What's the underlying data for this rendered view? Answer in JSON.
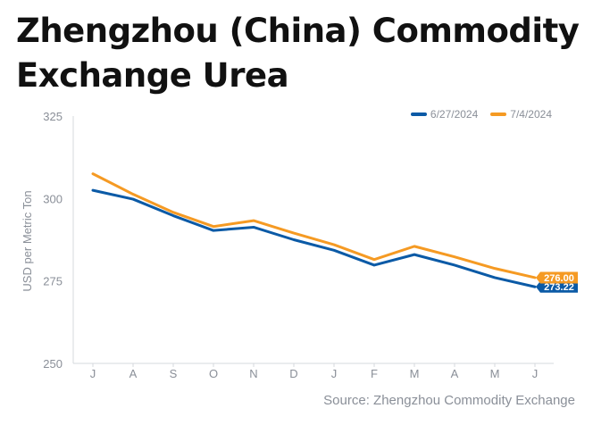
{
  "title_line1": "Zhengzhou (China) Commodity",
  "title_line2": "Exchange Urea",
  "source": "Source: Zhengzhou Commodity Exchange",
  "colors": {
    "series1": "#0b5aa6",
    "series2": "#f59a23",
    "axis": "#d5d8dd",
    "text": "#8a8f98"
  },
  "chart_data": {
    "type": "line",
    "title": "Zhengzhou (China) Commodity Exchange Urea",
    "ylabel": "USD per Metric Ton",
    "xlabel": "",
    "categories": [
      "J",
      "A",
      "S",
      "O",
      "N",
      "D",
      "J",
      "F",
      "M",
      "A",
      "M",
      "J"
    ],
    "ylim": [
      250,
      325
    ],
    "yticks": [
      250,
      275,
      300,
      325
    ],
    "grid": false,
    "legend_position": "top-right",
    "series": [
      {
        "name": "6/27/2024",
        "color": "#0b5aa6",
        "values": [
          302.5,
          299.8,
          294.8,
          290.3,
          291.3,
          287.5,
          284.3,
          279.8,
          283.0,
          279.8,
          276.0,
          273.22
        ],
        "end_label": "273.22"
      },
      {
        "name": "7/4/2024",
        "color": "#f59a23",
        "values": [
          307.5,
          301.3,
          295.8,
          291.5,
          293.3,
          289.5,
          286.0,
          281.5,
          285.5,
          282.3,
          278.8,
          276.0
        ],
        "end_label": "276.00"
      }
    ]
  }
}
